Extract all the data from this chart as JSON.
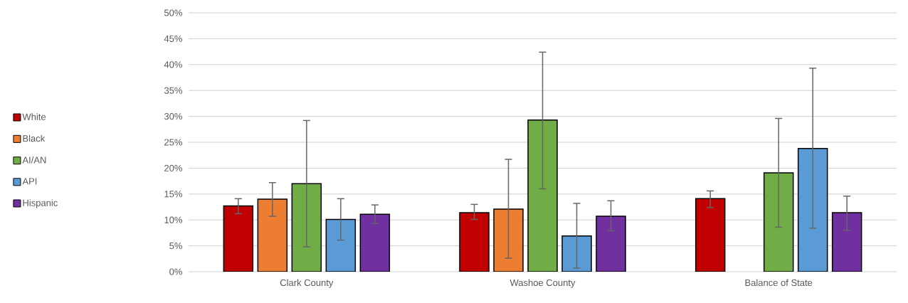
{
  "chart_data": {
    "type": "bar",
    "categories": [
      "Clark County",
      "Washoe County",
      "Balance of State"
    ],
    "series": [
      {
        "name": "White",
        "color": "#c00000",
        "values": [
          12.7,
          11.4,
          14.1
        ],
        "errors": [
          [
            11.2,
            14.1
          ],
          [
            10.1,
            13.0
          ],
          [
            12.4,
            15.6
          ]
        ]
      },
      {
        "name": "Black",
        "color": "#ed7d31",
        "values": [
          14.0,
          12.1,
          null
        ],
        "errors": [
          [
            10.7,
            17.2
          ],
          [
            2.6,
            21.7
          ],
          null
        ]
      },
      {
        "name": "AI/AN",
        "color": "#70ad47",
        "values": [
          17.0,
          29.3,
          19.1
        ],
        "errors": [
          [
            4.8,
            29.2
          ],
          [
            16.0,
            42.4
          ],
          [
            8.6,
            29.6
          ]
        ]
      },
      {
        "name": "API",
        "color": "#5b9bd5",
        "values": [
          10.1,
          6.9,
          23.8
        ],
        "errors": [
          [
            6.1,
            14.1
          ],
          [
            0.7,
            13.2
          ],
          [
            8.4,
            39.3
          ]
        ]
      },
      {
        "name": "Hispanic",
        "color": "#7030a0",
        "values": [
          11.1,
          10.7,
          11.4
        ],
        "errors": [
          [
            9.3,
            12.9
          ],
          [
            7.9,
            13.7
          ],
          [
            8.0,
            14.6
          ]
        ]
      }
    ],
    "ylim": [
      0,
      50
    ],
    "yticks": [
      {
        "value": 0,
        "label": "0%"
      },
      {
        "value": 5,
        "label": "5%"
      },
      {
        "value": 10,
        "label": "10%"
      },
      {
        "value": 15,
        "label": "15%"
      },
      {
        "value": 20,
        "label": "20%"
      },
      {
        "value": 25,
        "label": "25%"
      },
      {
        "value": 30,
        "label": "30%"
      },
      {
        "value": 35,
        "label": "35%"
      },
      {
        "value": 40,
        "label": "40%"
      },
      {
        "value": 45,
        "label": "45%"
      },
      {
        "value": 50,
        "label": "50%"
      }
    ],
    "grid": "y",
    "legend": "left"
  }
}
